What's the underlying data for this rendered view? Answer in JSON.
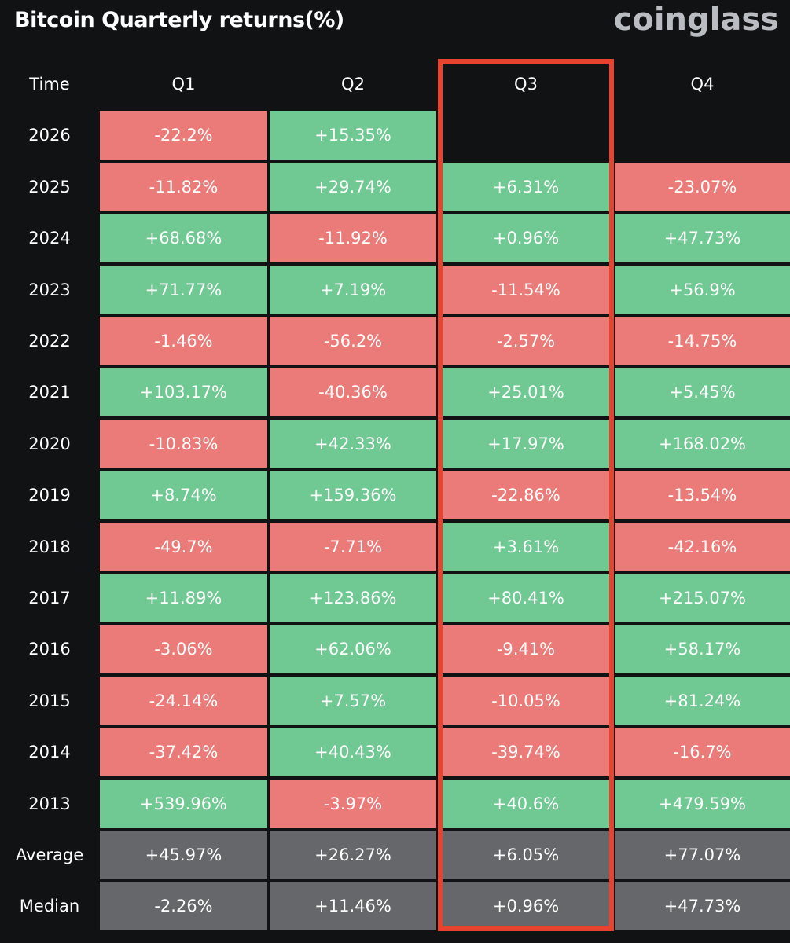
{
  "header": {
    "title": "Bitcoin Quarterly returns(%)",
    "brand": "coinglass"
  },
  "colors": {
    "positive": "#70c993",
    "negative": "#ea7b78",
    "summary": "#66676a",
    "highlight_border": "#e8432f",
    "background": "#111214"
  },
  "chart_data": {
    "type": "table",
    "title": "Bitcoin Quarterly returns(%)",
    "columns": [
      "Time",
      "Q1",
      "Q2",
      "Q3",
      "Q4"
    ],
    "highlighted_column": "Q3",
    "rows": [
      {
        "label": "2026",
        "values": [
          "-22.2%",
          "+15.35%",
          "",
          ""
        ]
      },
      {
        "label": "2025",
        "values": [
          "-11.82%",
          "+29.74%",
          "+6.31%",
          "-23.07%"
        ]
      },
      {
        "label": "2024",
        "values": [
          "+68.68%",
          "-11.92%",
          "+0.96%",
          "+47.73%"
        ]
      },
      {
        "label": "2023",
        "values": [
          "+71.77%",
          "+7.19%",
          "-11.54%",
          "+56.9%"
        ]
      },
      {
        "label": "2022",
        "values": [
          "-1.46%",
          "-56.2%",
          "-2.57%",
          "-14.75%"
        ]
      },
      {
        "label": "2021",
        "values": [
          "+103.17%",
          "-40.36%",
          "+25.01%",
          "+5.45%"
        ]
      },
      {
        "label": "2020",
        "values": [
          "-10.83%",
          "+42.33%",
          "+17.97%",
          "+168.02%"
        ]
      },
      {
        "label": "2019",
        "values": [
          "+8.74%",
          "+159.36%",
          "-22.86%",
          "-13.54%"
        ]
      },
      {
        "label": "2018",
        "values": [
          "-49.7%",
          "-7.71%",
          "+3.61%",
          "-42.16%"
        ]
      },
      {
        "label": "2017",
        "values": [
          "+11.89%",
          "+123.86%",
          "+80.41%",
          "+215.07%"
        ]
      },
      {
        "label": "2016",
        "values": [
          "-3.06%",
          "+62.06%",
          "-9.41%",
          "+58.17%"
        ]
      },
      {
        "label": "2015",
        "values": [
          "-24.14%",
          "+7.57%",
          "-10.05%",
          "+81.24%"
        ]
      },
      {
        "label": "2014",
        "values": [
          "-37.42%",
          "+40.43%",
          "-39.74%",
          "-16.7%"
        ]
      },
      {
        "label": "2013",
        "values": [
          "+539.96%",
          "-3.97%",
          "+40.6%",
          "+479.59%"
        ]
      }
    ],
    "summary_rows": [
      {
        "label": "Average",
        "values": [
          "+45.97%",
          "+26.27%",
          "+6.05%",
          "+77.07%"
        ]
      },
      {
        "label": "Median",
        "values": [
          "-2.26%",
          "+11.46%",
          "+0.96%",
          "+47.73%"
        ]
      }
    ]
  }
}
